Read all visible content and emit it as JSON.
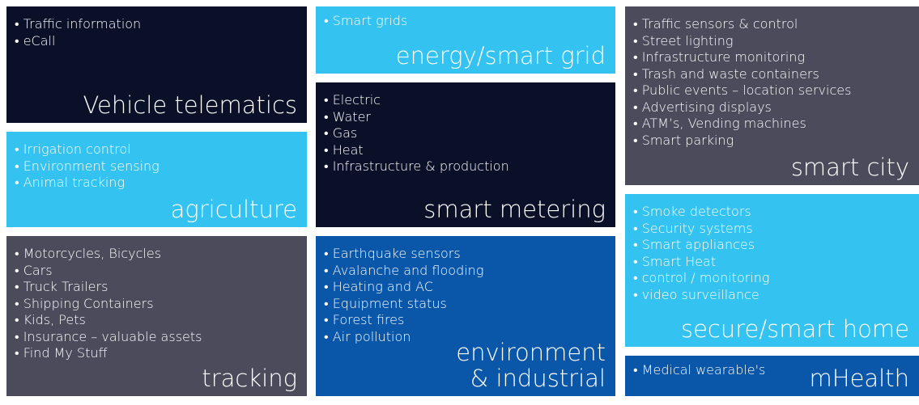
{
  "tiles": [
    {
      "title_lines": [
        "Vehicle telematics"
      ],
      "items": [
        "• Traffic information",
        "• eCall"
      ]
    },
    {
      "title_lines": [
        "agriculture"
      ],
      "items": [
        "• Irrigation control",
        "• Environment sensing",
        "• Animal tracking"
      ]
    },
    {
      "title_lines": [
        "tracking"
      ],
      "items": [
        "• Motorcycles, Bicycles",
        "• Cars",
        "• Truck Trailers",
        "• Shipping Containers",
        "• Kids, Pets",
        "• Insurance – valuable assets",
        "• Find My Stuff"
      ]
    },
    {
      "title_lines": [
        "energy/smart grid"
      ],
      "items": [
        "• Smart grids"
      ]
    },
    {
      "title_lines": [
        "smart metering"
      ],
      "items": [
        "• Electric",
        "• Water",
        "• Gas",
        "• Heat",
        "• Infrastructure & production"
      ]
    },
    {
      "title_lines": [
        "environment",
        "& industrial"
      ],
      "items": [
        "• Earthquake sensors",
        "• Avalanche and flooding",
        "• Heating and AC",
        "• Equipment status",
        "• Forest fires",
        "• Air pollution"
      ]
    },
    {
      "title_lines": [
        "smart city"
      ],
      "items": [
        "• Traffic sensors & control",
        "• Street lighting",
        "• Infrastructure monitoring",
        "• Trash and waste containers",
        "• Public events – location services",
        "• Advertising displays",
        "• ATM’s, Vending machines",
        "• Smart parking"
      ]
    },
    {
      "title_lines": [
        "secure/smart home"
      ],
      "items": [
        "• Smoke detectors",
        "• Security systems",
        "• Smart appliances",
        "• Smart Heat",
        "• control / monitoring",
        "• video surveillance"
      ]
    },
    {
      "title_lines": [
        "mHealth"
      ],
      "items": [
        "• Medical wearable's"
      ]
    }
  ]
}
